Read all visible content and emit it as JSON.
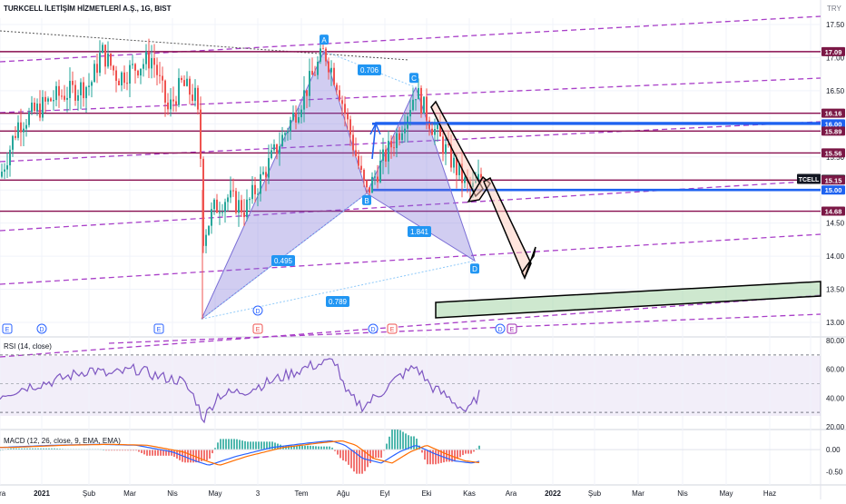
{
  "header": {
    "symbol_title": "TURKCELL İLETİŞİM HİZMETLERİ A.Ş., 1G, BIST",
    "currency": "TRY"
  },
  "colors": {
    "up": "#26a69a",
    "down": "#ef5350",
    "wine": "#880e4f",
    "blue": "#1e62f0",
    "purple": "#a93fc8",
    "pattern": "#7b6fd6",
    "rsi": "#7e57c2",
    "macd": "#2962ff",
    "signal": "#ff6d00",
    "tag_bg": "#7b1846"
  },
  "chart_data": [
    {
      "type": "candlestick",
      "panel": "price",
      "title": "TURKCELL İLETİŞİM HİZMETLERİ A.Ş., 1G, BIST",
      "ylabel": "TRY",
      "ylim": [
        12.9,
        17.7
      ],
      "y_ticks": [
        "17.50",
        "17.00",
        "16.50",
        "16.00",
        "15.50",
        "15.00",
        "14.50",
        "14.00",
        "13.50",
        "13.00"
      ],
      "last_price_label": "TCELL",
      "last_price": "15.16",
      "price_tags": [
        {
          "label": "17.09",
          "value": 17.09,
          "kind": "wine"
        },
        {
          "label": "16.16",
          "value": 16.16,
          "kind": "wine"
        },
        {
          "label": "16.00",
          "value": 16.0,
          "kind": "blue"
        },
        {
          "label": "15.89",
          "value": 15.89,
          "kind": "wine"
        },
        {
          "label": "15.56",
          "value": 15.56,
          "kind": "wine"
        },
        {
          "label": "15.16",
          "value": 15.16,
          "kind": "dark"
        },
        {
          "label": "15.15",
          "value": 15.15,
          "kind": "wine"
        },
        {
          "label": "15.00",
          "value": 15.0,
          "kind": "blue"
        },
        {
          "label": "14.68",
          "value": 14.68,
          "kind": "wine"
        }
      ],
      "harmonic_points": [
        {
          "label": "A",
          "value": 17.1
        },
        {
          "label": "B",
          "value": 14.95
        },
        {
          "label": "C",
          "value": 16.55
        },
        {
          "label": "D",
          "value": 13.93
        }
      ],
      "ratio_labels": [
        "0.706",
        "1.841",
        "0.495",
        "0.789"
      ],
      "event_markers": [
        "E",
        "D",
        "E",
        "D",
        "E",
        "D",
        "E",
        "D",
        "E"
      ]
    },
    {
      "type": "line",
      "panel": "rsi",
      "title": "RSI (14, close)",
      "ylim": [
        20,
        80
      ],
      "y_ticks": [
        "80.00",
        "60.00",
        "40.00",
        "20.00"
      ],
      "band": [
        30,
        70
      ]
    },
    {
      "type": "bar+line",
      "panel": "macd",
      "title": "MACD (12, 26, close, 9, EMA, EMA)",
      "y_ticks": [
        "0.00",
        "-0.50"
      ],
      "series": [
        {
          "name": "MACD"
        },
        {
          "name": "Signal"
        }
      ]
    }
  ],
  "x_axis": {
    "labels": [
      "Ara",
      "2021",
      "Şub",
      "Mar",
      "Nis",
      "May",
      "3",
      "Tem",
      "Ağu",
      "Eyl",
      "Eki",
      "Kas",
      "Ara",
      "2022",
      "Şub",
      "Mar",
      "Nis",
      "May",
      "Haz"
    ]
  }
}
